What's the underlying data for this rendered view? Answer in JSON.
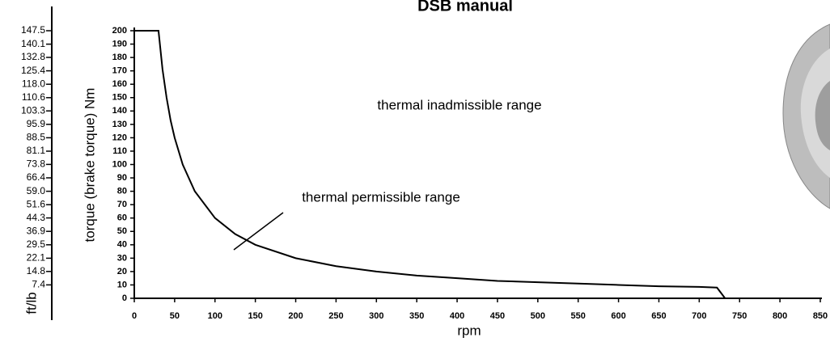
{
  "chart_data": {
    "type": "line",
    "title": "DSB manual",
    "x_label": "rpm",
    "y_label": "torque (brake torque) Nm",
    "y2_label": "ft/lb",
    "annotations": [
      "thermal inadmissible range",
      "thermal permissible range"
    ],
    "series": [
      {
        "name": "torque",
        "color": "#000000",
        "x": [
          0,
          30,
          35,
          40,
          45,
          50,
          60,
          75,
          100,
          125,
          150,
          200,
          250,
          300,
          350,
          400,
          450,
          500,
          550,
          600,
          650,
          700,
          722,
          732
        ],
        "values": [
          200,
          200,
          171,
          150,
          133,
          120,
          100,
          80,
          60,
          48,
          40,
          30,
          24,
          20,
          17,
          15,
          13,
          12,
          11,
          10,
          9,
          8.5,
          8,
          0
        ]
      }
    ],
    "xlim": [
      0,
      850
    ],
    "xticks": [
      0,
      50,
      100,
      150,
      200,
      250,
      300,
      350,
      400,
      450,
      500,
      550,
      600,
      650,
      700,
      750,
      800,
      850
    ],
    "ylim": [
      0,
      200
    ],
    "yticks": [
      0,
      10,
      20,
      30,
      40,
      50,
      60,
      70,
      80,
      90,
      100,
      110,
      120,
      130,
      140,
      150,
      160,
      170,
      180,
      190,
      200
    ],
    "y2lim": [
      0,
      147.5
    ],
    "y2ticks": [
      7.4,
      14.8,
      22.1,
      29.5,
      36.9,
      44.3,
      51.6,
      {
        "value": 59,
        "label": "59.0"
      },
      66.4,
      73.8,
      81.1,
      88.5,
      95.9,
      103.3,
      110.6,
      {
        "value": 118,
        "label": "118.0"
      },
      125.4,
      132.8,
      140.1,
      147.5
    ]
  }
}
